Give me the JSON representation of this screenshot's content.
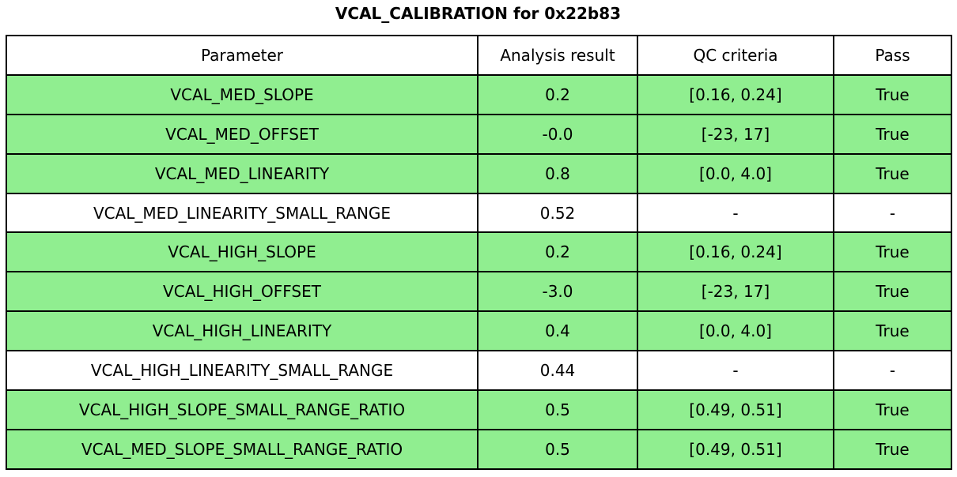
{
  "title": "VCAL_CALIBRATION for 0x22b83",
  "chart_data": {
    "type": "table",
    "title": "VCAL_CALIBRATION for 0x22b83",
    "columns": [
      "Parameter",
      "Analysis result",
      "QC criteria",
      "Pass"
    ],
    "rows": [
      [
        "VCAL_MED_SLOPE",
        "0.2",
        "[0.16, 0.24]",
        "True"
      ],
      [
        "VCAL_MED_OFFSET",
        "-0.0",
        "[-23, 17]",
        "True"
      ],
      [
        "VCAL_MED_LINEARITY",
        "0.8",
        "[0.0, 4.0]",
        "True"
      ],
      [
        "VCAL_MED_LINEARITY_SMALL_RANGE",
        "0.52",
        "-",
        "-"
      ],
      [
        "VCAL_HIGH_SLOPE",
        "0.2",
        "[0.16, 0.24]",
        "True"
      ],
      [
        "VCAL_HIGH_OFFSET",
        "-3.0",
        "[-23, 17]",
        "True"
      ],
      [
        "VCAL_HIGH_LINEARITY",
        "0.4",
        "[0.0, 4.0]",
        "True"
      ],
      [
        "VCAL_HIGH_LINEARITY_SMALL_RANGE",
        "0.44",
        "-",
        "-"
      ],
      [
        "VCAL_HIGH_SLOPE_SMALL_RANGE_RATIO",
        "0.5",
        "[0.49, 0.51]",
        "True"
      ],
      [
        "VCAL_MED_SLOPE_SMALL_RANGE_RATIO",
        "0.5",
        "[0.49, 0.51]",
        "True"
      ]
    ],
    "row_status": [
      "pass",
      "pass",
      "pass",
      "none",
      "pass",
      "pass",
      "pass",
      "none",
      "pass",
      "pass"
    ],
    "layout": {
      "header_bg": "#ffffff",
      "grid": true,
      "legend": "none"
    }
  },
  "colors": {
    "pass_row_bg": "#90ee90",
    "default_bg": "#ffffff",
    "border": "#000000",
    "text": "#000000"
  }
}
